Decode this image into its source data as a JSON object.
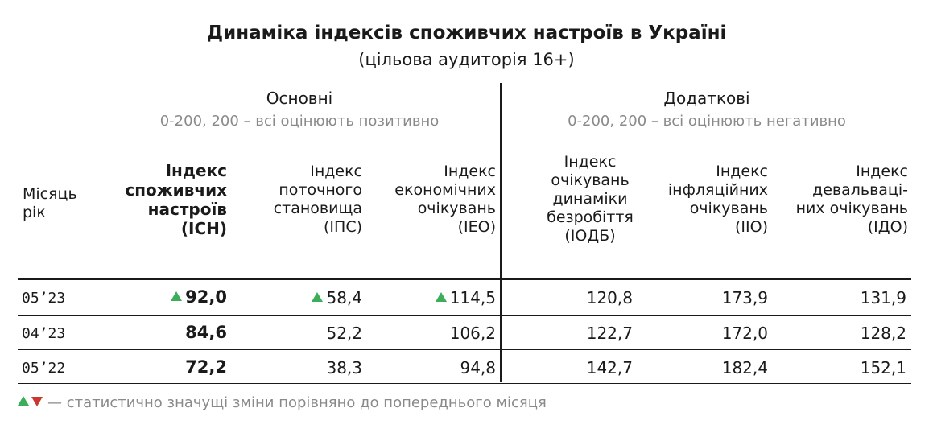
{
  "title": "Динаміка індексів споживчих настроїв в Україні",
  "subtitle": "(цільова аудиторія 16+)",
  "groups": {
    "main": {
      "title": "Основні",
      "scale": "0-200, 200 – всі оцінюють позитивно"
    },
    "extra": {
      "title": "Додаткові",
      "scale": "0-200, 200 – всі оцінюють негативно"
    }
  },
  "columns": {
    "month": [
      "Місяць",
      "рік"
    ],
    "isn": [
      "Індекс",
      "споживчих",
      "настроїв",
      "(ІСН)"
    ],
    "ips": [
      "Індекс",
      "поточного",
      "становища",
      "(ІПС)"
    ],
    "ieo": [
      "Індекс",
      "економічних",
      "очікувань",
      "(ІЕО)"
    ],
    "iodb": [
      "Індекс",
      "очікувань",
      "динаміки",
      "безробіття",
      "(ІОДБ)"
    ],
    "iio": [
      "Індекс",
      "інфляційних",
      "очікувань",
      "(ІІО)"
    ],
    "ido": [
      "Індекс",
      "девальваці-",
      "них очікувань",
      "(ІДО)"
    ]
  },
  "rows": [
    {
      "month": "05’23",
      "isn": "92,0",
      "ips": "58,4",
      "ieo": "114,5",
      "iodb": "120,8",
      "iio": "173,9",
      "ido": "131,9"
    },
    {
      "month": "04’23",
      "isn": "84,6",
      "ips": "52,2",
      "ieo": "106,2",
      "iodb": "122,7",
      "iio": "172,0",
      "ido": "128,2"
    },
    {
      "month": "05’22",
      "isn": "72,2",
      "ips": "38,3",
      "ieo": "94,8",
      "iodb": "142,7",
      "iio": "182,4",
      "ido": "152,1"
    }
  ],
  "significant_up": {
    "row0": [
      "isn",
      "ips",
      "ieo"
    ]
  },
  "legend": "— статистично значущі зміни порівняно до попереднього місяця",
  "colors": {
    "up": "#3cae5b",
    "down": "#c8382d",
    "muted": "#8a8a8a"
  }
}
